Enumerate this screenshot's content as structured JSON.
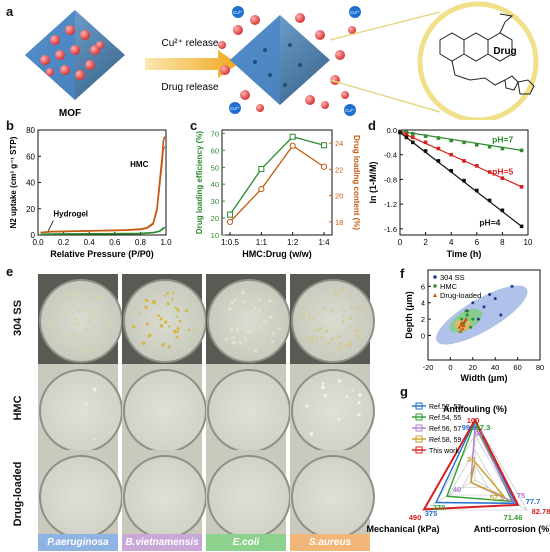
{
  "panel_a": {
    "label": "a",
    "mof_label": "MOF",
    "arrow_top": "Cu²⁺ release",
    "arrow_bottom": "Drug release",
    "drug_label": "Drug",
    "cu_ion": "Cu²⁺"
  },
  "panel_b": {
    "label": "b",
    "chart_data": {
      "type": "line",
      "xlabel": "Relative Pressure (P/P0)",
      "ylabel": "N2 uptake (cm³ g⁻¹ STP)",
      "xlim": [
        0,
        1.0
      ],
      "ylim": [
        0,
        80
      ],
      "xticks": [
        "0.0",
        "0.2",
        "0.4",
        "0.6",
        "0.8",
        "1.0"
      ],
      "yticks": [
        "0",
        "20",
        "40",
        "60",
        "80"
      ],
      "series": [
        {
          "name": "HMC",
          "color": "#c55a11",
          "x": [
            0.02,
            0.1,
            0.2,
            0.3,
            0.4,
            0.5,
            0.6,
            0.7,
            0.8,
            0.85,
            0.9,
            0.93,
            0.95,
            0.97,
            0.98,
            0.99
          ],
          "y": [
            2,
            2.5,
            2.8,
            3,
            3.2,
            3.4,
            3.6,
            3.9,
            4.5,
            5.5,
            9,
            20,
            40,
            60,
            72,
            75
          ]
        },
        {
          "name": "Hydrogel",
          "color": "#2e8b2e",
          "x": [
            0.02,
            0.1,
            0.2,
            0.4,
            0.6,
            0.8,
            0.9,
            0.95,
            0.99
          ],
          "y": [
            0.6,
            0.7,
            0.8,
            0.9,
            1.0,
            1.2,
            1.8,
            3,
            6
          ]
        }
      ]
    }
  },
  "panel_c": {
    "label": "c",
    "chart_data": {
      "type": "line",
      "xlabel": "HMC:Drug (w/w)",
      "categories": [
        "1:0.5",
        "1:1",
        "1:2",
        "1:4"
      ],
      "ylabel_left": "Drug loading efficiency (%)",
      "ylabel_right": "Drug loading content (%)",
      "yticks_left": [
        "10",
        "20",
        "30",
        "40",
        "50",
        "60",
        "70"
      ],
      "yticks_right": [
        "18",
        "20",
        "22",
        "24"
      ],
      "series": [
        {
          "name": "Drug loading efficiency (%)",
          "color": "#2e8b2e",
          "values": [
            22,
            49,
            68,
            63
          ]
        },
        {
          "name": "Drug loading content (%)",
          "color": "#c55a11",
          "values": [
            18,
            20.5,
            23.8,
            22.2
          ]
        }
      ]
    }
  },
  "panel_d": {
    "label": "d",
    "chart_data": {
      "type": "scatter",
      "xlabel": "Time (h)",
      "ylabel": "ln (1-M/M)",
      "xlim": [
        0,
        10
      ],
      "ylim": [
        -1.7,
        0
      ],
      "xticks": [
        "0",
        "2",
        "4",
        "6",
        "8",
        "10"
      ],
      "yticks": [
        "0.0",
        "-0.4",
        "-0.8",
        "-1.2",
        "-1.6"
      ],
      "series": [
        {
          "name": "pH=7",
          "color": "#2e8b2e",
          "x": [
            0,
            0.5,
            1,
            2,
            3,
            4,
            5,
            6,
            7,
            8,
            9.5
          ],
          "y": [
            -0.02,
            -0.04,
            -0.06,
            -0.1,
            -0.13,
            -0.17,
            -0.2,
            -0.24,
            -0.27,
            -0.3,
            -0.33
          ]
        },
        {
          "name": "pH=5",
          "color": "#d62020",
          "x": [
            0,
            0.5,
            1,
            2,
            3,
            4,
            5,
            6,
            7,
            8,
            9.5
          ],
          "y": [
            -0.03,
            -0.07,
            -0.12,
            -0.2,
            -0.3,
            -0.4,
            -0.5,
            -0.58,
            -0.68,
            -0.78,
            -0.92
          ]
        },
        {
          "name": "pH=4",
          "color": "#111111",
          "x": [
            0,
            0.5,
            1,
            2,
            3,
            4,
            5,
            6,
            7,
            8,
            9.5
          ],
          "y": [
            -0.04,
            -0.12,
            -0.2,
            -0.34,
            -0.5,
            -0.66,
            -0.82,
            -0.98,
            -1.14,
            -1.3,
            -1.56
          ]
        }
      ]
    }
  },
  "panel_e": {
    "label": "e",
    "rows": [
      "304 SS",
      "HMC",
      "Drug-loaded"
    ],
    "bacteria": [
      {
        "name": "P.aeruginosa",
        "color": "#8fb4e3"
      },
      {
        "name": "B.vietnamensis",
        "color": "#c9a8d8"
      },
      {
        "name": "E.coli",
        "color": "#8cd18c"
      },
      {
        "name": "S.aureus",
        "color": "#f2b57a"
      }
    ]
  },
  "panel_f": {
    "label": "f",
    "chart_data": {
      "type": "scatter",
      "xlabel": "Width (μm)",
      "ylabel": "Depth (μm)",
      "xlim": [
        -20,
        80
      ],
      "ylim": [
        -3,
        8
      ],
      "xticks": [
        "-20",
        "0",
        "20",
        "40",
        "60",
        "80"
      ],
      "yticks": [
        "0",
        "2",
        "4",
        "6"
      ],
      "series": [
        {
          "name": "304 SS",
          "color": "#1f3a8a",
          "x": [
            20,
            30,
            35,
            45,
            55,
            25,
            40,
            15
          ],
          "y": [
            4,
            3.5,
            5,
            2.5,
            6,
            2,
            4.5,
            3
          ]
        },
        {
          "name": "HMC",
          "color": "#2e8b2e",
          "x": [
            10,
            12,
            15,
            18,
            20,
            14
          ],
          "y": [
            2,
            1.5,
            2.5,
            1,
            2,
            3
          ]
        },
        {
          "name": "Drug-loaded",
          "color": "#c55a11",
          "x": [
            8,
            10,
            12,
            14,
            9,
            11,
            13,
            10
          ],
          "y": [
            1,
            1.5,
            1.2,
            2,
            0.5,
            0.8,
            1.8,
            1.3
          ]
        }
      ]
    }
  },
  "panel_g": {
    "label": "g",
    "chart_data": {
      "type": "radar",
      "axes": [
        "Antifouling (%)",
        "Anti-corrosion (%)",
        "Mechanical (kPa)"
      ],
      "series": [
        {
          "name": "Ref.52, 53",
          "color": "#1f6fd1",
          "values": [
            99.9,
            77.7,
            375
          ]
        },
        {
          "name": "Ref.54, 55",
          "color": "#2ca02c",
          "values": [
            97.3,
            71.46,
            270
          ]
        },
        {
          "name": "Ref.56, 57",
          "color": "#b07fd0",
          "values": [
            90,
            75,
            40
          ]
        },
        {
          "name": "Ref.58, 59",
          "color": "#c9a227",
          "values": [
            30,
            57.2,
            40
          ]
        },
        {
          "name": "This work",
          "color": "#d62020",
          "values": [
            100,
            82.78,
            490
          ]
        }
      ],
      "value_labels": [
        "100",
        "99.9",
        "97.3",
        "90",
        "30",
        "77.7",
        "75",
        "82.78",
        "71.46",
        "57.2",
        "490",
        "375",
        "270",
        "40"
      ]
    }
  }
}
